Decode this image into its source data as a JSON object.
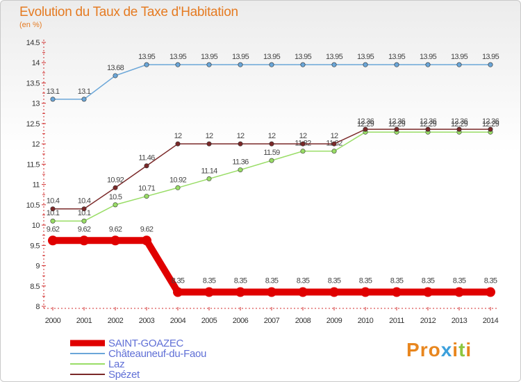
{
  "header": {
    "title": "Evolution du Taux de Taxe d'Habitation",
    "subtitle": "(en %)"
  },
  "logo": {
    "text": "Proxiti",
    "letter_colors": [
      "#e8861e",
      "#e8861e",
      "#e8861e",
      "#3ca0dc",
      "#e8861e",
      "#8cc63e",
      "#e8861e"
    ]
  },
  "chart_data": {
    "type": "line",
    "title": "Evolution du Taux de Taxe d'Habitation",
    "ylabel": "(en %)",
    "xlabel": "",
    "x": [
      "2000",
      "2001",
      "2002",
      "2003",
      "2004",
      "2005",
      "2006",
      "2007",
      "2008",
      "2009",
      "2010",
      "2011",
      "2012",
      "2013",
      "2014"
    ],
    "ylim": [
      8,
      14.5
    ],
    "yticks": [
      "8",
      "8.5",
      "9",
      "9.5",
      "10",
      "10.5",
      "11",
      "11.5",
      "12",
      "12.5",
      "13",
      "13.5",
      "14",
      "14.5"
    ],
    "grid": false,
    "legend_position": "bottom-left",
    "series": [
      {
        "name": "SAINT-GOAZEC",
        "color": "#e00000",
        "emphasis": true,
        "values": [
          9.62,
          9.62,
          9.62,
          9.62,
          8.35,
          8.35,
          8.35,
          8.35,
          8.35,
          8.35,
          8.35,
          8.35,
          8.35,
          8.35,
          8.35
        ],
        "labels": [
          "9.62",
          "9.62",
          "9.62",
          "9.62",
          "8.35",
          "8.35",
          "8.35",
          "8.35",
          "8.35",
          "8.35",
          "8.35",
          "8.35",
          "8.35",
          "8.35",
          "8.35"
        ]
      },
      {
        "name": "Châteauneuf-du-Faou",
        "color": "#6aa6d8",
        "emphasis": false,
        "values": [
          13.1,
          13.1,
          13.68,
          13.95,
          13.95,
          13.95,
          13.95,
          13.95,
          13.95,
          13.95,
          13.95,
          13.95,
          13.95,
          13.95,
          13.95
        ],
        "labels": [
          "13.1",
          "13.1",
          "13.68",
          "13.95",
          "13.95",
          "13.95",
          "13.95",
          "13.95",
          "13.95",
          "13.95",
          "13.95",
          "13.95",
          "13.95",
          "13.95",
          "13.95"
        ]
      },
      {
        "name": "Laz",
        "color": "#99dd66",
        "emphasis": false,
        "values": [
          10.1,
          10.1,
          10.5,
          10.71,
          10.92,
          11.14,
          11.36,
          11.59,
          11.82,
          11.82,
          12.29,
          12.29,
          12.29,
          12.29,
          12.29
        ],
        "labels": [
          "10.1",
          "10.1",
          "10.5",
          "10.71",
          "10.92",
          "11.14",
          "11.36",
          "11.59",
          "11.82",
          "11.82",
          "12.29",
          "12.29",
          "12.29",
          "12.29",
          "12.29"
        ]
      },
      {
        "name": "Spézet",
        "color": "#7a2828",
        "emphasis": false,
        "values": [
          10.4,
          10.4,
          10.92,
          11.46,
          12,
          12,
          12,
          12,
          12,
          12,
          12.36,
          12.36,
          12.36,
          12.36,
          12.36
        ],
        "labels": [
          "10.4",
          "10.4",
          "10.92",
          "11.46",
          "12",
          "12",
          "12",
          "12",
          "12",
          "12",
          "12.36",
          "12.36",
          "12.36",
          "12.36",
          "12.36"
        ]
      }
    ]
  }
}
